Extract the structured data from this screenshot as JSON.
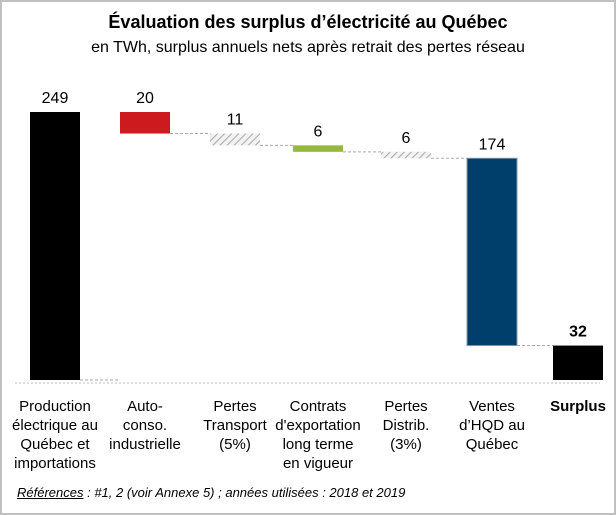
{
  "chart_data": {
    "type": "waterfall",
    "title": "Évaluation des surplus d’électricité au Québec",
    "subtitle": "en TWh, surplus annuels nets après retrait des pertes réseau",
    "categories": [
      "Production électrique au Québec et importations",
      "Auto-conso. industrielle",
      "Pertes Transport (5%)",
      "Contrats d'exportation long terme en vigueur",
      "Pertes Distrib. (3%)",
      "Ventes d’HQD au Québec",
      "Surplus"
    ],
    "category_lines": [
      [
        "Production",
        "électrique au",
        "Québec et",
        "importations"
      ],
      [
        "Auto-",
        "conso.",
        "industrielle"
      ],
      [
        "Pertes",
        "Transport",
        "(5%)"
      ],
      [
        "Contrats",
        "d'exportation",
        "long terme",
        "en vigueur"
      ],
      [
        "Pertes",
        "Distrib.",
        "(3%)"
      ],
      [
        "Ventes",
        "d’HQD au",
        "Québec"
      ],
      [
        "Surplus"
      ]
    ],
    "values": [
      249,
      -20,
      -11,
      -6,
      -6,
      -174,
      32
    ],
    "labels": [
      "249",
      "20",
      "11",
      "6",
      "6",
      "174",
      "32"
    ],
    "kinds": [
      "total",
      "decrease",
      "loss",
      "decrease",
      "loss",
      "decrease",
      "total"
    ],
    "colors": [
      "#000000",
      "#cc1a1f",
      "hatch",
      "#95b93a",
      "hatch",
      "#003f6c",
      "#000000"
    ],
    "connectors": "dashed",
    "grid": false,
    "legend": "none"
  },
  "references": {
    "label": "Références",
    "text": " : #1, 2 (voir Annexe 5) ; années utilisées : 2018 et 2019"
  }
}
